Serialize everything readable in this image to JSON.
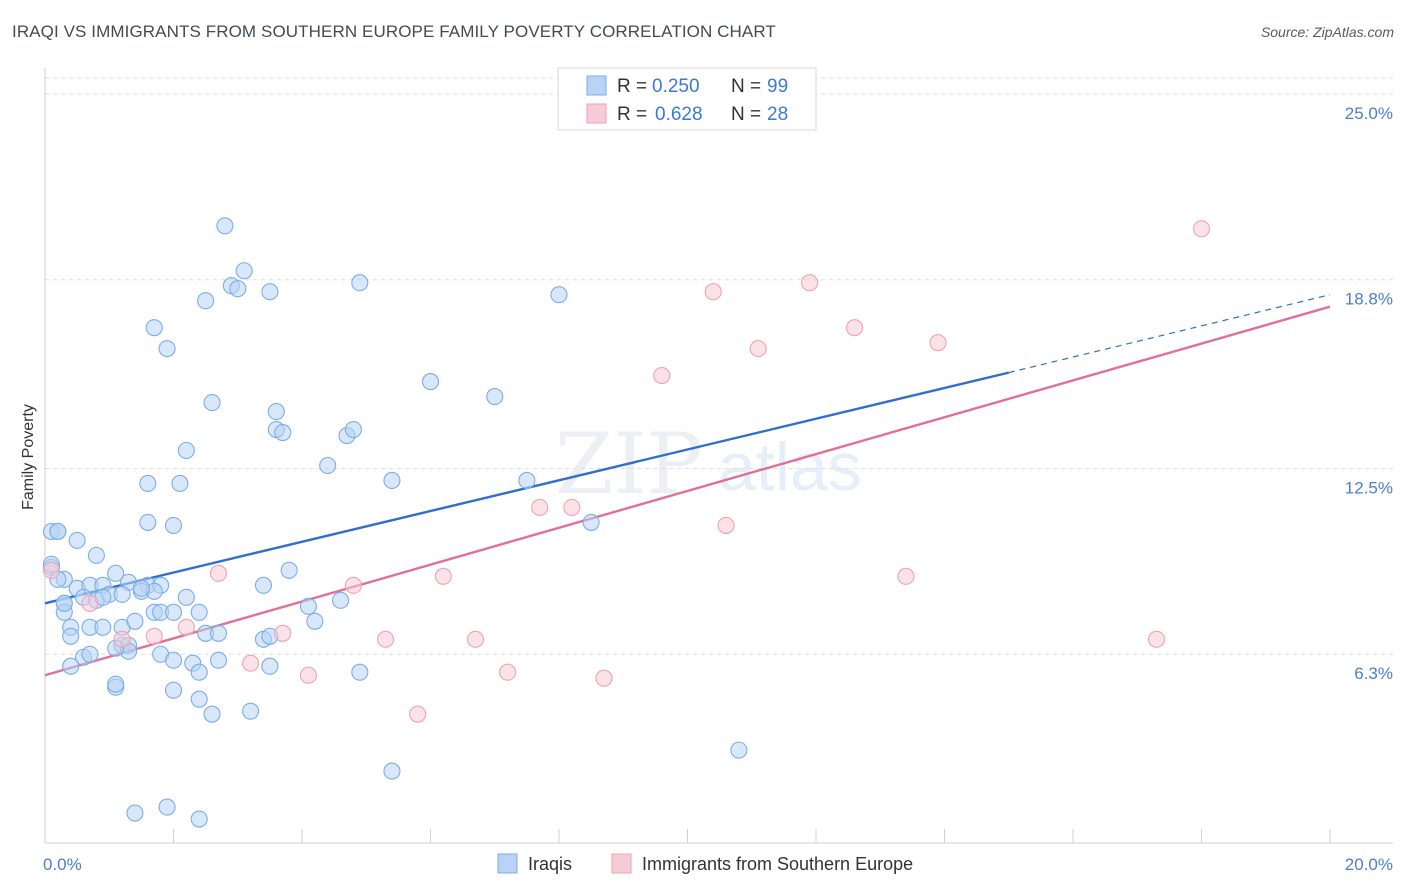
{
  "title": "IRAQI VS IMMIGRANTS FROM SOUTHERN EUROPE FAMILY POVERTY CORRELATION CHART",
  "source": "Source: ZipAtlas.com",
  "watermark": {
    "zip": "ZIP",
    "atlas": "atlas"
  },
  "chart_data": {
    "type": "scatter",
    "xlabel": "",
    "ylabel": "Family Poverty",
    "xlim": [
      0,
      20
    ],
    "ylim": [
      0,
      25.8
    ],
    "x_tick_labels": [
      {
        "value": 0,
        "label": "0.0%"
      },
      {
        "value": 20,
        "label": "20.0%"
      }
    ],
    "y_tick_labels": [
      {
        "value": 6.3,
        "label": "6.3%"
      },
      {
        "value": 12.5,
        "label": "12.5%"
      },
      {
        "value": 18.8,
        "label": "18.8%"
      },
      {
        "value": 25.0,
        "label": "25.0%"
      }
    ],
    "legend": {
      "rows": [
        {
          "r_label": "R =",
          "r_value": "0.250",
          "n_label": "N =",
          "n_value": "99"
        },
        {
          "r_label": "R =",
          "r_value": "0.628",
          "n_label": "N =",
          "n_value": "28"
        }
      ]
    },
    "series": [
      {
        "name": "Iraqis",
        "color": "#7aaee8",
        "fill": "#b8d3f4",
        "line_color": "#2f6fd0",
        "trend": {
          "x0": 0,
          "y0": 8.0,
          "x1": 15.0,
          "y1": 15.7,
          "dash_x1": 20.0,
          "dash_y1": 18.3
        },
        "points": [
          [
            0.1,
            10.4
          ],
          [
            0.2,
            10.4
          ],
          [
            0.5,
            10.1
          ],
          [
            0.8,
            9.6
          ],
          [
            0.1,
            9.2
          ],
          [
            0.3,
            8.8
          ],
          [
            1.1,
            9.0
          ],
          [
            0.2,
            8.8
          ],
          [
            0.5,
            8.5
          ],
          [
            0.7,
            8.6
          ],
          [
            0.9,
            8.6
          ],
          [
            1.3,
            8.7
          ],
          [
            1.6,
            8.6
          ],
          [
            1.8,
            8.6
          ],
          [
            0.6,
            8.2
          ],
          [
            0.8,
            8.1
          ],
          [
            1.0,
            8.3
          ],
          [
            1.2,
            8.3
          ],
          [
            1.5,
            8.4
          ],
          [
            1.7,
            8.4
          ],
          [
            2.2,
            8.2
          ],
          [
            0.3,
            8.0
          ],
          [
            0.3,
            7.7
          ],
          [
            2.4,
            7.7
          ],
          [
            1.7,
            7.7
          ],
          [
            1.8,
            7.7
          ],
          [
            0.4,
            7.2
          ],
          [
            0.7,
            7.2
          ],
          [
            0.9,
            7.2
          ],
          [
            1.2,
            7.2
          ],
          [
            1.4,
            7.4
          ],
          [
            2.5,
            7.0
          ],
          [
            2.7,
            7.0
          ],
          [
            0.4,
            6.9
          ],
          [
            1.2,
            6.6
          ],
          [
            1.3,
            6.6
          ],
          [
            1.3,
            6.4
          ],
          [
            0.6,
            6.2
          ],
          [
            0.7,
            6.3
          ],
          [
            1.1,
            6.5
          ],
          [
            1.8,
            6.3
          ],
          [
            2.0,
            6.1
          ],
          [
            2.3,
            6.0
          ],
          [
            2.4,
            5.7
          ],
          [
            2.7,
            6.1
          ],
          [
            0.4,
            5.9
          ],
          [
            1.1,
            5.2
          ],
          [
            1.1,
            5.3
          ],
          [
            2.0,
            5.1
          ],
          [
            2.4,
            4.8
          ],
          [
            2.6,
            4.3
          ],
          [
            3.2,
            4.4
          ],
          [
            3.4,
            6.8
          ],
          [
            3.5,
            6.9
          ],
          [
            3.5,
            5.9
          ],
          [
            4.9,
            5.7
          ],
          [
            4.1,
            7.9
          ],
          [
            4.2,
            7.4
          ],
          [
            4.6,
            8.1
          ],
          [
            3.4,
            8.6
          ],
          [
            3.8,
            9.1
          ],
          [
            1.6,
            10.7
          ],
          [
            2.0,
            10.6
          ],
          [
            1.6,
            12.0
          ],
          [
            2.1,
            12.0
          ],
          [
            2.2,
            13.1
          ],
          [
            4.4,
            12.6
          ],
          [
            5.4,
            12.1
          ],
          [
            7.5,
            12.1
          ],
          [
            8.5,
            10.7
          ],
          [
            3.6,
            13.8
          ],
          [
            3.7,
            13.7
          ],
          [
            4.7,
            13.6
          ],
          [
            4.8,
            13.8
          ],
          [
            3.6,
            14.4
          ],
          [
            2.6,
            14.7
          ],
          [
            1.9,
            16.5
          ],
          [
            1.7,
            17.2
          ],
          [
            6.0,
            15.4
          ],
          [
            7.0,
            14.9
          ],
          [
            2.5,
            18.1
          ],
          [
            2.9,
            18.6
          ],
          [
            3.0,
            18.5
          ],
          [
            3.1,
            19.1
          ],
          [
            3.5,
            18.4
          ],
          [
            4.9,
            18.7
          ],
          [
            8.0,
            18.3
          ],
          [
            2.8,
            20.6
          ],
          [
            10.8,
            3.1
          ],
          [
            5.4,
            2.4
          ],
          [
            1.4,
            1.0
          ],
          [
            1.9,
            1.2
          ],
          [
            2.4,
            0.8
          ],
          [
            0.2,
            10.4
          ],
          [
            0.1,
            9.3
          ],
          [
            0.3,
            8.0
          ],
          [
            1.5,
            8.5
          ],
          [
            2.0,
            7.7
          ],
          [
            0.9,
            8.2
          ]
        ]
      },
      {
        "name": "Immigrants from Southern Europe",
        "color": "#eba3b8",
        "fill": "#f7cad7",
        "line_color": "#e07096",
        "trend": {
          "x0": 0,
          "y0": 5.6,
          "x1": 20.0,
          "y1": 17.9
        },
        "points": [
          [
            0.1,
            9.1
          ],
          [
            0.7,
            8.0
          ],
          [
            1.2,
            6.8
          ],
          [
            1.7,
            6.9
          ],
          [
            2.2,
            7.2
          ],
          [
            2.7,
            9.0
          ],
          [
            3.2,
            6.0
          ],
          [
            3.7,
            7.0
          ],
          [
            4.1,
            5.6
          ],
          [
            4.8,
            8.6
          ],
          [
            5.3,
            6.8
          ],
          [
            5.8,
            4.3
          ],
          [
            6.2,
            8.9
          ],
          [
            6.7,
            6.8
          ],
          [
            7.2,
            5.7
          ],
          [
            7.7,
            11.2
          ],
          [
            8.2,
            11.2
          ],
          [
            8.7,
            5.5
          ],
          [
            9.6,
            15.6
          ],
          [
            10.6,
            10.6
          ],
          [
            10.4,
            18.4
          ],
          [
            11.1,
            16.5
          ],
          [
            11.9,
            18.7
          ],
          [
            12.6,
            17.2
          ],
          [
            13.4,
            8.9
          ],
          [
            13.9,
            16.7
          ],
          [
            17.3,
            6.8
          ],
          [
            18.0,
            20.5
          ]
        ]
      }
    ]
  }
}
